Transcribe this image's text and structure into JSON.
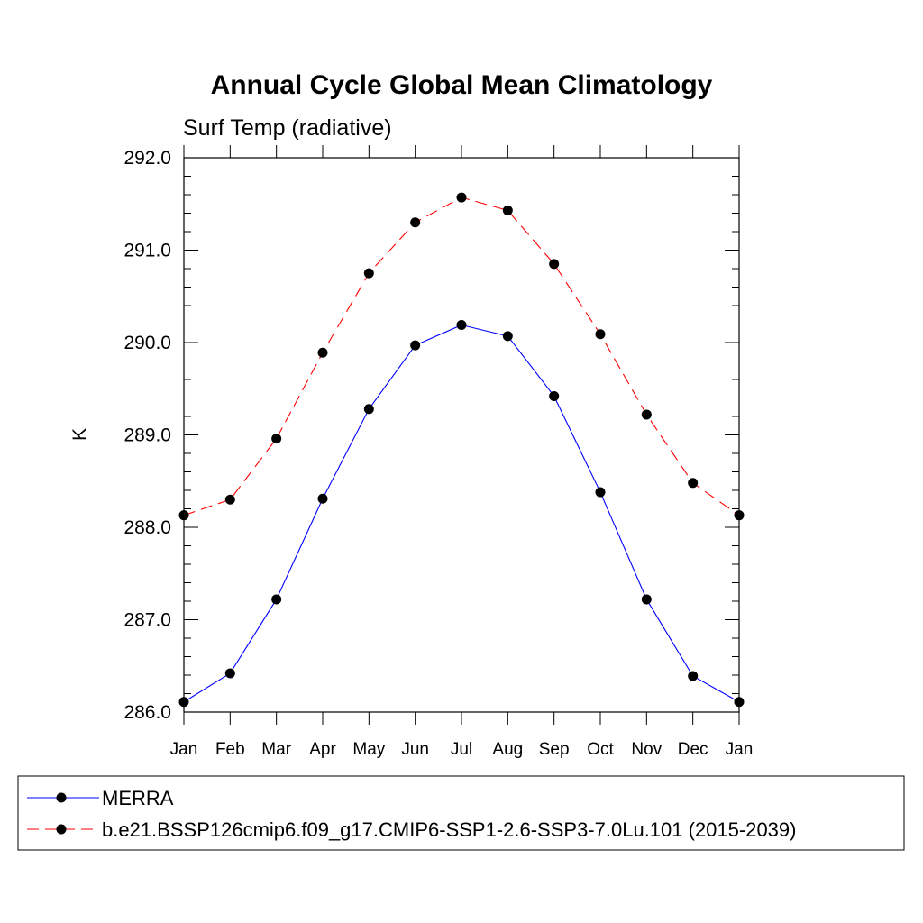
{
  "chart_data": {
    "type": "line",
    "title": "Annual Cycle Global Mean Climatology",
    "subtitle": "Surf Temp (radiative)",
    "ylabel": "K",
    "xlabel": "",
    "x": [
      "Jan",
      "Feb",
      "Mar",
      "Apr",
      "May",
      "Jun",
      "Jul",
      "Aug",
      "Sep",
      "Oct",
      "Nov",
      "Dec",
      "Jan"
    ],
    "ylim": [
      286.0,
      292.0
    ],
    "yticks": [
      "286.0",
      "287.0",
      "288.0",
      "289.0",
      "290.0",
      "291.0",
      "292.0"
    ],
    "grid": false,
    "legend_position": "bottom",
    "series": [
      {
        "name": "MERRA",
        "color": "#0000ff",
        "line_style": "solid",
        "marker": "filled-circle",
        "values": [
          286.11,
          286.42,
          287.22,
          288.31,
          289.28,
          289.97,
          290.19,
          290.07,
          289.42,
          288.38,
          287.22,
          286.39,
          286.11
        ]
      },
      {
        "name": "b.e21.BSSP126cmip6.f09_g17.CMIP6-SSP1-2.6-SSP3-7.0Lu.101 (2015-2039)",
        "color": "#ff0000",
        "line_style": "dashed",
        "marker": "filled-circle",
        "values": [
          288.13,
          288.3,
          288.96,
          289.89,
          290.75,
          291.3,
          291.57,
          291.43,
          290.85,
          290.09,
          289.22,
          288.48,
          288.13
        ]
      }
    ]
  }
}
